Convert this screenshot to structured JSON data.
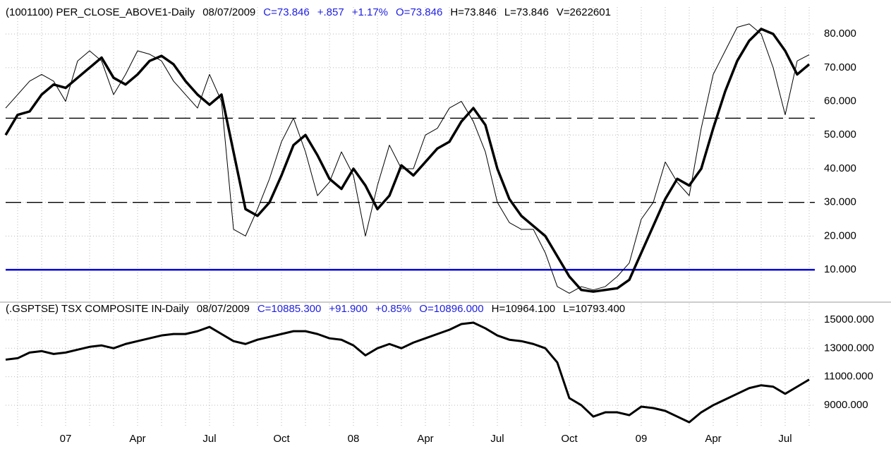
{
  "chart_data": {
    "type": "line",
    "categories": [
      null,
      null,
      null,
      null,
      null,
      "07",
      null,
      null,
      null,
      null,
      null,
      "Apr",
      null,
      null,
      null,
      null,
      null,
      "Jul",
      null,
      null,
      null,
      null,
      null,
      "Oct",
      null,
      null,
      null,
      null,
      null,
      "08",
      null,
      null,
      null,
      null,
      null,
      "Apr",
      null,
      null,
      null,
      null,
      null,
      "Jul",
      null,
      null,
      null,
      null,
      null,
      "Oct",
      null,
      null,
      null,
      null,
      null,
      "09",
      null,
      null,
      null,
      null,
      null,
      "Apr",
      null,
      null,
      null,
      null,
      null,
      "Jul",
      null,
      null
    ],
    "grid": true,
    "panels": [
      {
        "header": [
          {
            "text": "(1001100) PER_CLOSE_ABOVE1-Daily",
            "color": "#000000"
          },
          {
            "text": "08/07/2009",
            "color": "#000000"
          },
          {
            "text": "C=73.846",
            "color": "#2020e0"
          },
          {
            "text": "+.857",
            "color": "#2020e0"
          },
          {
            "text": "+1.17%",
            "color": "#2020e0"
          },
          {
            "text": "O=73.846",
            "color": "#2020e0"
          },
          {
            "text": "H=73.846",
            "color": "#000000"
          },
          {
            "text": "L=73.846",
            "color": "#000000"
          },
          {
            "text": "V=2622601",
            "color": "#000000"
          }
        ],
        "ylim": [
          1,
          88
        ],
        "yticks": [
          {
            "value": 80,
            "label": "80.000"
          },
          {
            "value": 70,
            "label": "70.000"
          },
          {
            "value": 60,
            "label": "60.000"
          },
          {
            "value": 50,
            "label": "50.000"
          },
          {
            "value": 40,
            "label": "40.000"
          },
          {
            "value": 30,
            "label": "30.000"
          },
          {
            "value": 20,
            "label": "20.000"
          },
          {
            "value": 10,
            "label": "10.000"
          }
        ],
        "reference_lines": [
          {
            "value": 55,
            "style": "dashed",
            "color": "#000000"
          },
          {
            "value": 30,
            "style": "dashed",
            "color": "#000000"
          },
          {
            "value": 10,
            "style": "solid",
            "color": "#0000dd"
          }
        ],
        "series": [
          {
            "color": "#000000",
            "width": 1,
            "values": [
              58,
              62,
              66,
              68,
              66,
              60,
              72,
              75,
              72,
              62,
              68,
              75,
              74,
              72,
              66,
              62,
              58,
              68,
              60,
              22,
              20,
              28,
              37,
              48,
              55,
              45,
              32,
              36,
              45,
              38,
              20,
              35,
              47,
              40,
              40,
              50,
              52,
              58,
              60,
              54,
              45,
              30,
              24,
              22,
              22,
              15,
              5,
              3,
              5,
              4,
              5,
              8,
              12,
              25,
              30,
              42,
              36,
              32,
              52,
              68,
              75,
              82,
              83,
              80,
              70,
              56,
              72,
              73.846
            ]
          },
          {
            "color": "#000000",
            "width": 3.5,
            "values": [
              50,
              56,
              57,
              62,
              65,
              64,
              67,
              70,
              73,
              67,
              65,
              68,
              72,
              73.5,
              71,
              66,
              62,
              59,
              62,
              45,
              28,
              26,
              30,
              38,
              47,
              50,
              44,
              37,
              34,
              40,
              35,
              28,
              32,
              41,
              38,
              42,
              46,
              48,
              54,
              58,
              53,
              40,
              31,
              26,
              23,
              20,
              14,
              8,
              4,
              3.5,
              4,
              4.5,
              7,
              15,
              23,
              31,
              37,
              35,
              40,
              52,
              63,
              72,
              78,
              81.5,
              80,
              75,
              68,
              71
            ]
          }
        ]
      },
      {
        "header": [
          {
            "text": "(.GSPTSE) TSX COMPOSITE IN-Daily",
            "color": "#000000"
          },
          {
            "text": "08/07/2009",
            "color": "#000000"
          },
          {
            "text": "C=10885.300",
            "color": "#2020e0"
          },
          {
            "text": "+91.900",
            "color": "#2020e0"
          },
          {
            "text": "+0.85%",
            "color": "#2020e0"
          },
          {
            "text": "O=10896.000",
            "color": "#2020e0"
          },
          {
            "text": "H=10964.100",
            "color": "#000000"
          },
          {
            "text": "L=10793.400",
            "color": "#000000"
          }
        ],
        "ylim": [
          7460,
          16140
        ],
        "yticks": [
          {
            "value": 15000,
            "label": "15000.000"
          },
          {
            "value": 13000,
            "label": "13000.000"
          },
          {
            "value": 11000,
            "label": "11000.000"
          },
          {
            "value": 9000,
            "label": "9000.000"
          }
        ],
        "reference_lines": [],
        "series": [
          {
            "color": "#000000",
            "width": 3,
            "values": [
              12200,
              12300,
              12700,
              12800,
              12600,
              12700,
              12900,
              13100,
              13200,
              13000,
              13300,
              13500,
              13700,
              13900,
              14000,
              14000,
              14200,
              14500,
              14000,
              13500,
              13300,
              13600,
              13800,
              14000,
              14200,
              14200,
              14000,
              13700,
              13600,
              13200,
              12500,
              13000,
              13300,
              13000,
              13400,
              13700,
              14000,
              14300,
              14700,
              14800,
              14400,
              13900,
              13600,
              13500,
              13300,
              13000,
              12000,
              9500,
              9000,
              8200,
              8500,
              8500,
              8300,
              8900,
              8800,
              8600,
              8200,
              7800,
              8500,
              9000,
              9400,
              9800,
              10200,
              10400,
              10300,
              9800,
              10300,
              10800
            ]
          }
        ]
      }
    ]
  }
}
